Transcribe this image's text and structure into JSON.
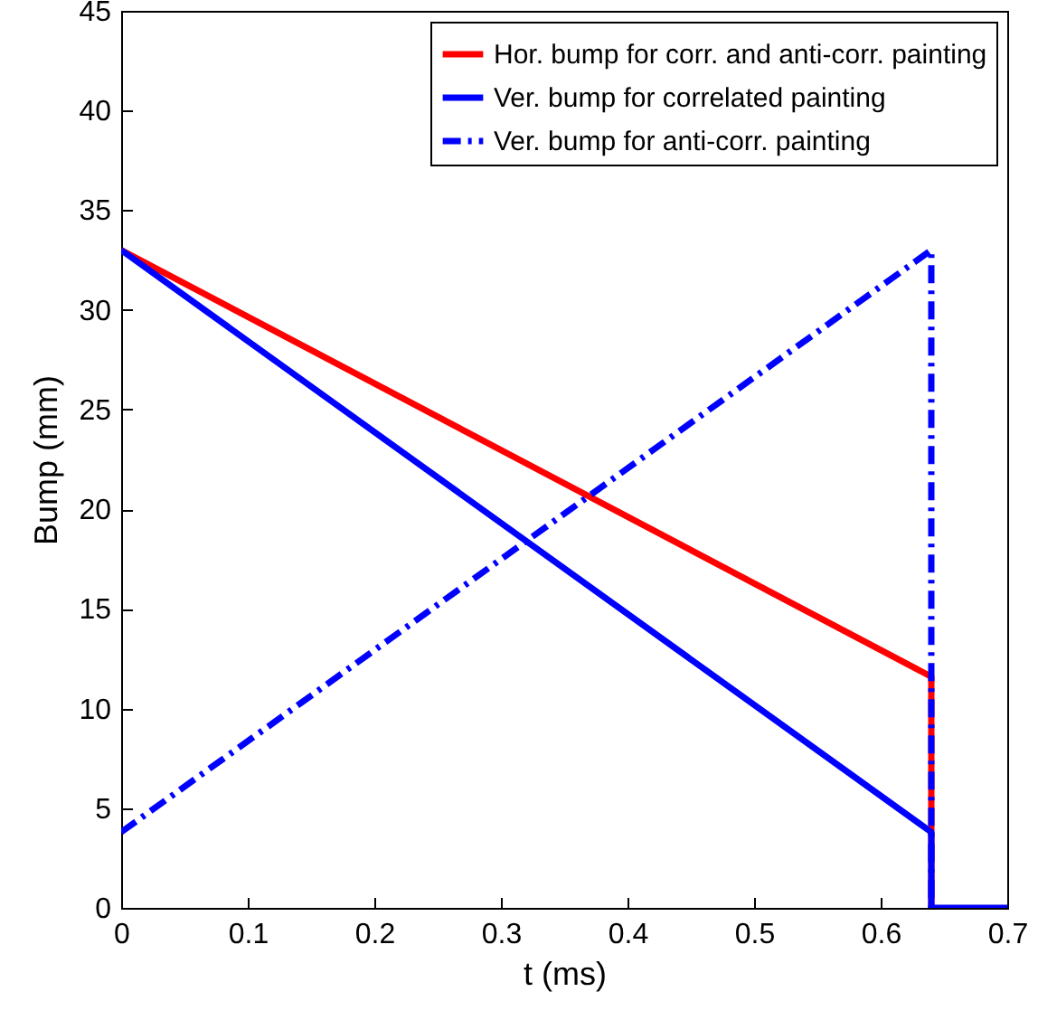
{
  "chart_data": {
    "type": "line",
    "xlabel": "t (ms)",
    "ylabel": "Bump (mm)",
    "xlim": [
      0,
      0.7
    ],
    "xticks": [
      0,
      0.1,
      0.2,
      0.3,
      0.4,
      0.5,
      0.6,
      0.7
    ],
    "ylim": [
      0,
      45
    ],
    "yticks": [
      0,
      5,
      10,
      15,
      20,
      25,
      30,
      35,
      40,
      45
    ],
    "grid": false,
    "legend": "top right",
    "marker": "none",
    "series": [
      {
        "name": "Hor. bump for corr. and anti-corr. painting",
        "color": "#ff0000",
        "line_style": "solid",
        "x": [
          0,
          0.64,
          0.64
        ],
        "values": [
          33,
          11.6,
          0
        ]
      },
      {
        "name": "Ver. bump for correlated painting",
        "color": "#0000ff",
        "line_style": "solid",
        "x": [
          0,
          0.64,
          0.64,
          0.7
        ],
        "values": [
          33,
          3.8,
          0,
          0
        ]
      },
      {
        "name": "Ver. bump for anti-corr. painting",
        "color": "#0000ff",
        "line_style": "dashdot",
        "x": [
          0,
          0.64,
          0.64
        ],
        "values": [
          3.8,
          33,
          0
        ]
      }
    ]
  }
}
